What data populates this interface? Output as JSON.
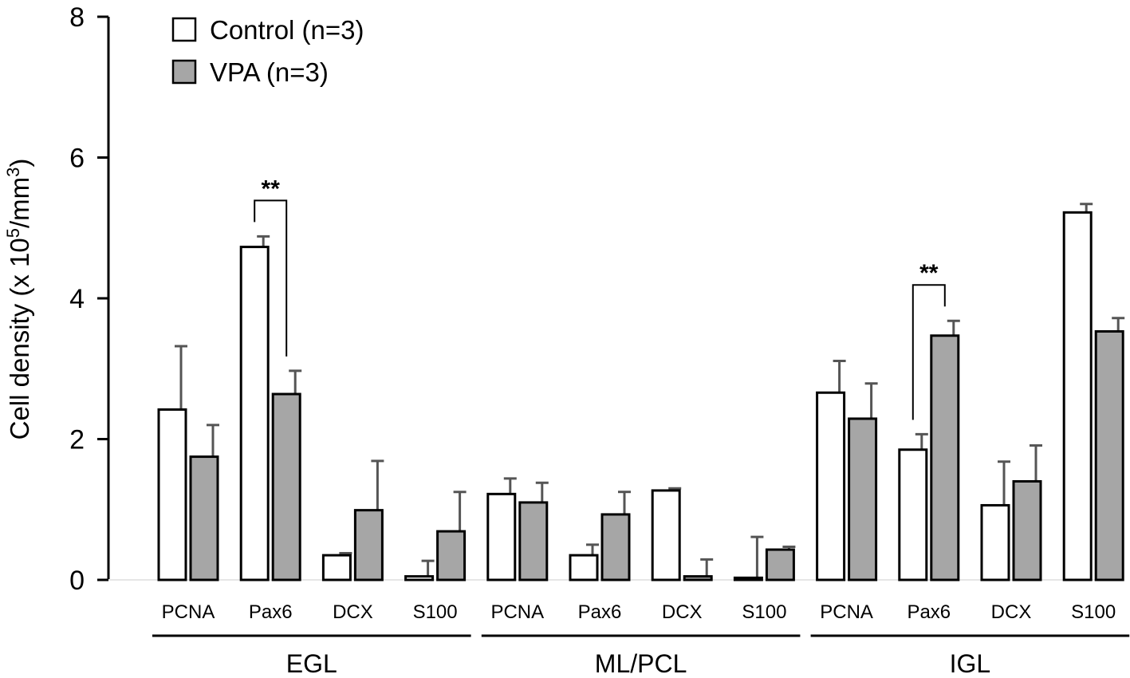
{
  "chart_data": {
    "type": "bar",
    "ylabel": "Cell density (x 10",
    "ylabel_exp": "5",
    "ylabel_unit": "/mm",
    "ylabel_unit_exp": "3",
    "ylabel_close": ")",
    "ylim": [
      0,
      8
    ],
    "yticks": [
      0,
      2,
      4,
      6,
      8
    ],
    "legend_position": "top-left",
    "groups": [
      {
        "label": "EGL",
        "categories": [
          "PCNA",
          "Pax6",
          "DCX",
          "S100"
        ]
      },
      {
        "label": "ML/PCL",
        "categories": [
          "PCNA",
          "Pax6",
          "DCX",
          "S100"
        ]
      },
      {
        "label": "IGL",
        "categories": [
          "PCNA",
          "Pax6",
          "DCX",
          "S100"
        ]
      }
    ],
    "series": [
      {
        "name": "Control (n=3)",
        "color": "#ffffff",
        "values": [
          2.42,
          4.73,
          0.35,
          0.05,
          1.22,
          0.35,
          1.27,
          0.03,
          2.66,
          1.85,
          1.06,
          5.22
        ],
        "errors": [
          0.9,
          0.15,
          0.03,
          0.22,
          0.22,
          0.15,
          0.03,
          0.58,
          0.45,
          0.22,
          0.62,
          0.12
        ]
      },
      {
        "name": "VPA (n=3)",
        "color": "#a6a6a6",
        "values": [
          1.75,
          2.64,
          0.99,
          0.69,
          1.1,
          0.93,
          0.05,
          0.43,
          2.29,
          3.47,
          1.4,
          3.53
        ],
        "errors": [
          0.45,
          0.33,
          0.7,
          0.56,
          0.28,
          0.32,
          0.24,
          0.04,
          0.5,
          0.21,
          0.51,
          0.19
        ]
      }
    ],
    "annotations": [
      {
        "text": "**",
        "group_index": 0,
        "category_index": 1
      },
      {
        "text": "**",
        "group_index": 2,
        "category_index": 1
      }
    ]
  }
}
